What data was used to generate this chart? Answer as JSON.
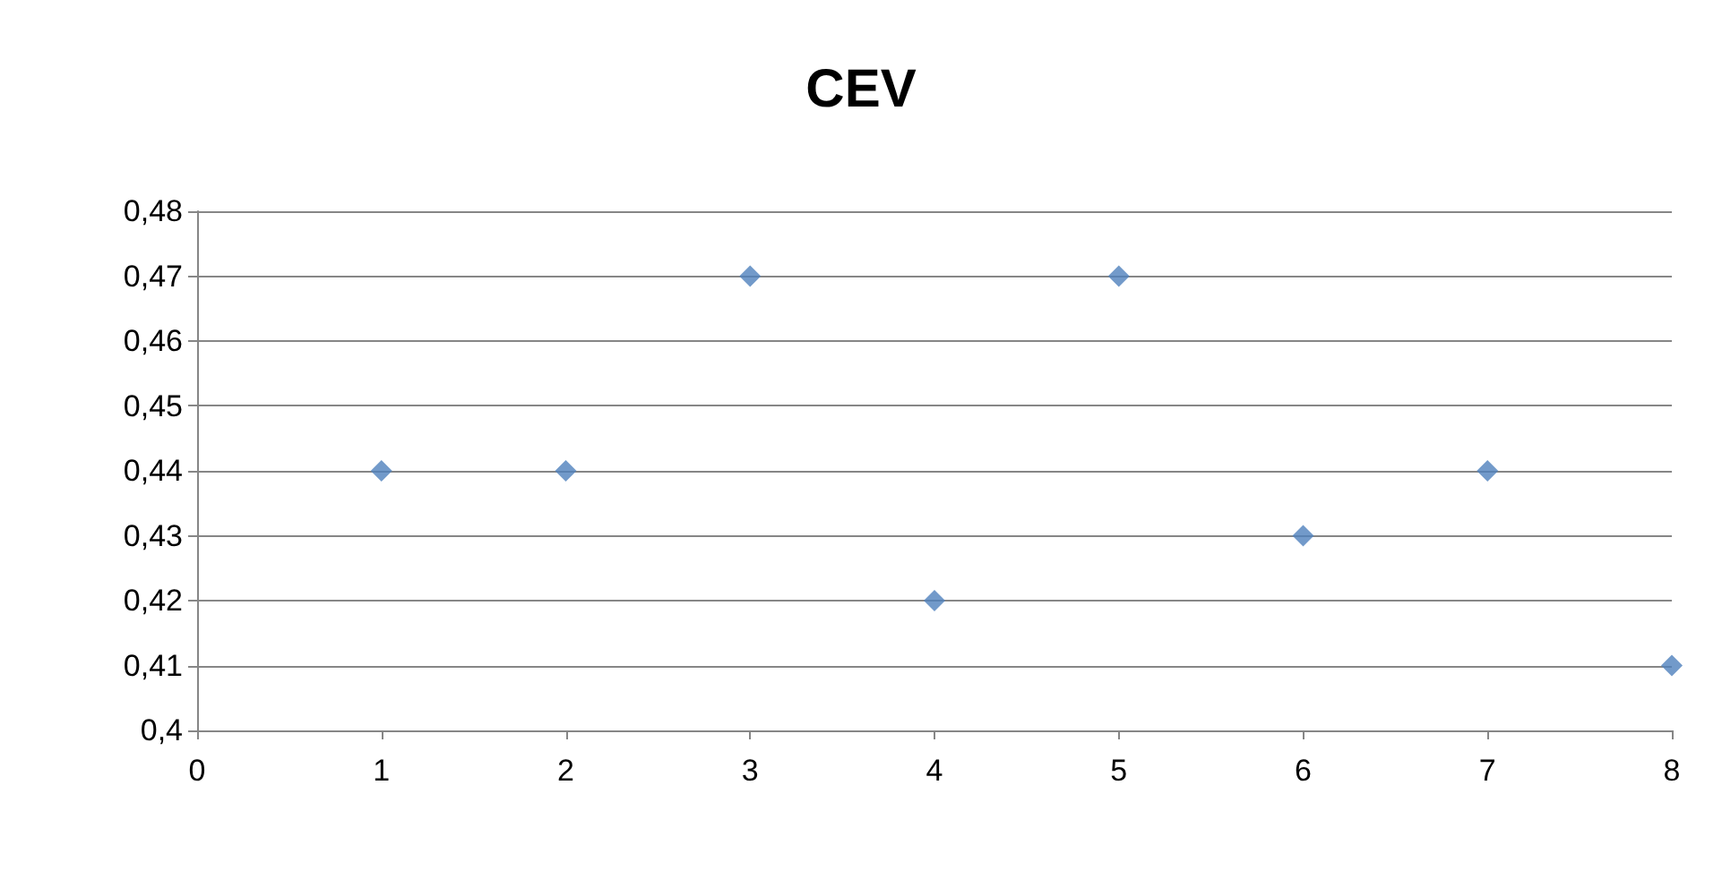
{
  "chart_data": {
    "type": "scatter",
    "title": "CEV",
    "x": [
      1,
      2,
      3,
      4,
      5,
      6,
      7,
      8
    ],
    "series": [
      {
        "color": "#4f81bd",
        "values": [
          0.44,
          0.44,
          0.47,
          0.42,
          0.47,
          0.43,
          0.44,
          0.41
        ]
      }
    ],
    "xlim": [
      0,
      8
    ],
    "xticks": [
      0,
      1,
      2,
      3,
      4,
      5,
      6,
      7,
      8
    ],
    "ylim": [
      0.4,
      0.48
    ],
    "yticks": [
      {
        "value": 0.4,
        "label": "0,4"
      },
      {
        "value": 0.41,
        "label": "0,41"
      },
      {
        "value": 0.42,
        "label": "0,42"
      },
      {
        "value": 0.43,
        "label": "0,43"
      },
      {
        "value": 0.44,
        "label": "0,44"
      },
      {
        "value": 0.45,
        "label": "0,45"
      },
      {
        "value": 0.46,
        "label": "0,46"
      },
      {
        "value": 0.47,
        "label": "0,47"
      },
      {
        "value": 0.48,
        "label": "0,48"
      }
    ],
    "grid": "y",
    "marker": "diamond"
  }
}
